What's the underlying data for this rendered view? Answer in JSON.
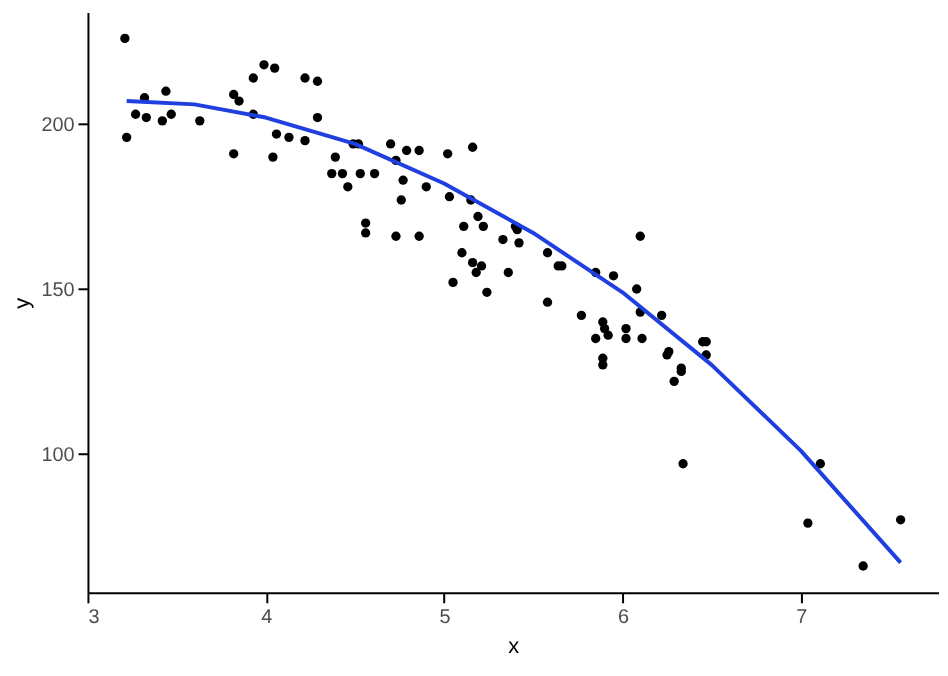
{
  "chart_data": {
    "type": "scatter",
    "xlabel": "x",
    "ylabel": "y",
    "xlim": [
      3,
      7.77
    ],
    "ylim": [
      58,
      234
    ],
    "xticks": [
      3,
      4,
      5,
      6,
      7
    ],
    "yticks": [
      100,
      150,
      200
    ],
    "grid": false,
    "marker": "circle",
    "series": [
      {
        "color": "#000000",
        "x": [
          3.21,
          3.22,
          3.27,
          3.32,
          3.33,
          3.42,
          3.44,
          3.47,
          3.63,
          3.82,
          3.82,
          3.85,
          3.93,
          3.99,
          4.05,
          3.93,
          4.04,
          4.06,
          4.22,
          4.29,
          4.13,
          4.22,
          4.29,
          4.39,
          4.43,
          4.49,
          4.52,
          4.37,
          4.46,
          4.53,
          4.61,
          4.7,
          4.73,
          4.79,
          4.77,
          4.76,
          4.86,
          4.9,
          4.56,
          4.56,
          4.73,
          4.86,
          5.03,
          5.02,
          5.16,
          5.15,
          5.19,
          5.11,
          5.22,
          5.1,
          5.16,
          5.18,
          5.21,
          5.05,
          5.24,
          5.36,
          5.4,
          5.41,
          5.42,
          5.33,
          5.58,
          5.64,
          5.66,
          5.58,
          5.77,
          5.85,
          5.89,
          5.9,
          5.85,
          5.89,
          5.89,
          5.95,
          5.92,
          6.08,
          6.1,
          6.02,
          6.02,
          6.1,
          6.11,
          6.22,
          6.26,
          6.25,
          6.29,
          6.33,
          6.33,
          6.34,
          6.45,
          6.47,
          6.47,
          7.11,
          7.04,
          7.35,
          7.56
        ],
        "values": [
          226,
          196,
          203,
          208,
          202,
          201,
          210,
          203,
          201,
          191,
          209,
          207,
          214,
          218,
          217,
          203,
          190,
          197,
          214,
          213,
          196,
          195,
          202,
          190,
          185,
          194,
          194,
          185,
          181,
          185,
          185,
          194,
          189,
          192,
          183,
          177,
          192,
          181,
          170,
          167,
          166,
          166,
          178,
          191,
          193,
          177,
          172,
          169,
          169,
          161,
          158,
          155,
          157,
          152,
          149,
          155,
          169,
          168,
          164,
          165,
          161,
          157,
          157,
          146,
          142,
          155,
          140,
          138,
          135,
          129,
          127,
          154,
          136,
          150,
          143,
          138,
          135,
          166,
          135,
          142,
          131,
          130,
          122,
          126,
          125,
          97,
          134,
          134,
          130,
          97,
          79,
          66,
          80
        ]
      },
      {
        "type": "line",
        "color": "#1f3fe0",
        "line_style": "solid",
        "marker": "none",
        "x": [
          3.22,
          3.6,
          4,
          4.5,
          5,
          5.5,
          6,
          6.5,
          7,
          7.56
        ],
        "values": [
          207,
          206,
          202,
          194,
          182,
          167,
          149,
          127,
          101,
          67
        ]
      }
    ]
  }
}
